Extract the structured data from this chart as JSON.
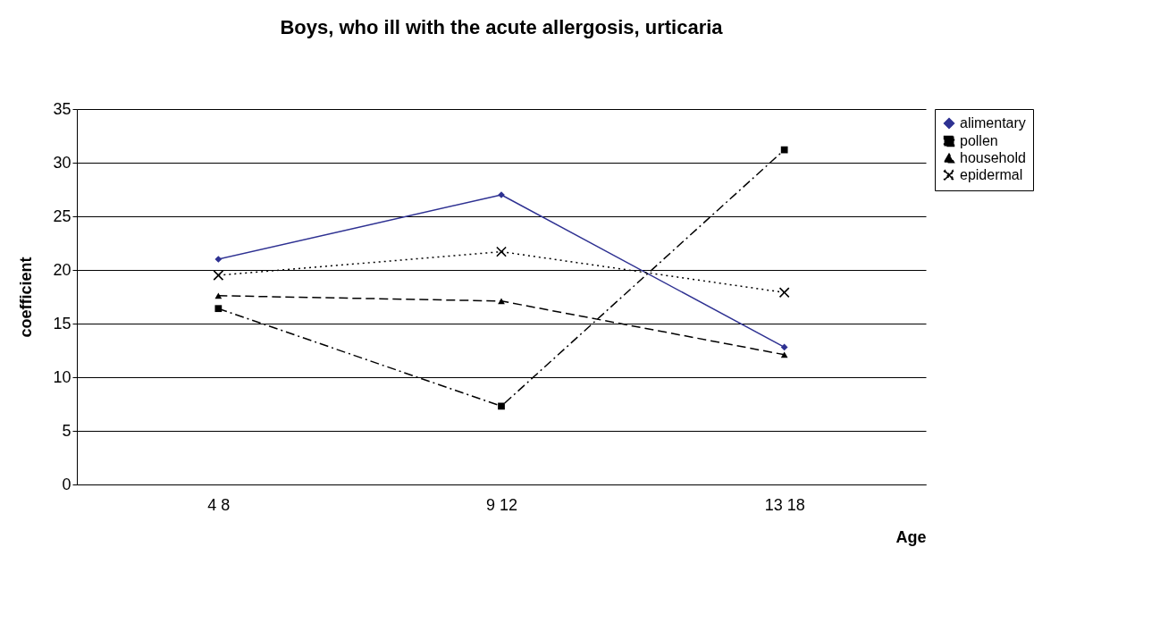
{
  "chart_data": {
    "type": "line",
    "title": "Boys, who ill with the acute allergosis, urticaria",
    "xlabel": "Age",
    "ylabel": "coefficient",
    "categories": [
      "4  8",
      "9  12",
      "13  18"
    ],
    "ylim": [
      0,
      35
    ],
    "yticks": [
      0,
      5,
      10,
      15,
      20,
      25,
      30,
      35
    ],
    "grid": "y",
    "legend": "right",
    "series": [
      {
        "name": "alimentary",
        "color": "#2e3192",
        "marker": "diamond",
        "line_style": "solid",
        "values": [
          21,
          27,
          12.8
        ]
      },
      {
        "name": "pollen",
        "color": "#000000",
        "marker": "square",
        "line_style": "dashdot",
        "values": [
          16.4,
          7.3,
          31.2
        ]
      },
      {
        "name": "household",
        "color": "#000000",
        "marker": "triangle",
        "line_style": "dashed",
        "values": [
          17.6,
          17.1,
          12.1
        ]
      },
      {
        "name": "epidermal",
        "color": "#000000",
        "marker": "cross",
        "line_style": "dotted",
        "values": [
          19.5,
          21.7,
          17.9
        ]
      }
    ]
  }
}
